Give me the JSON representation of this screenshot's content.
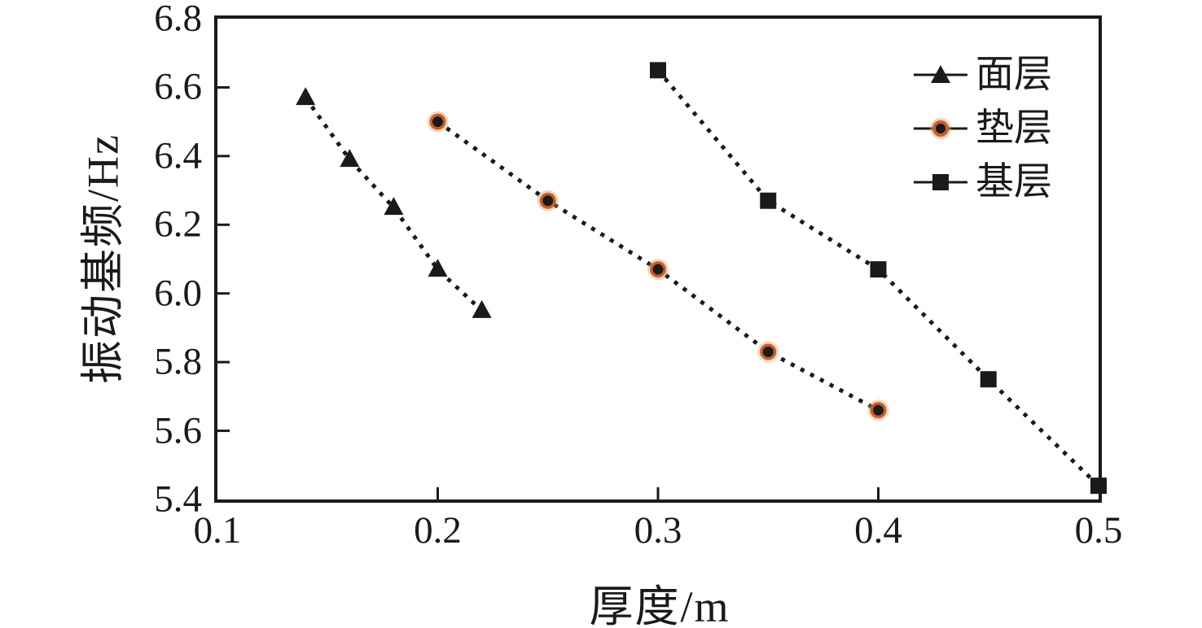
{
  "chart_data": {
    "type": "scatter",
    "title": "",
    "xlabel": "厚度/m",
    "ylabel": "振动基频/Hz",
    "xlim": [
      0.1,
      0.5
    ],
    "ylim": [
      5.4,
      6.8
    ],
    "xticks": [
      "0.1",
      "0.2",
      "0.3",
      "0.4",
      "0.5"
    ],
    "yticks": [
      "5.4",
      "5.6",
      "5.8",
      "6.0",
      "6.2",
      "6.4",
      "6.6",
      "6.8"
    ],
    "grid": false,
    "line_style": "dotted",
    "legend_position": "top-right-inside",
    "series": [
      {
        "name": "面层",
        "marker": "triangle",
        "color": "#1a1a1a",
        "x": [
          0.14,
          0.16,
          0.18,
          0.2,
          0.22
        ],
        "y": [
          6.57,
          6.39,
          6.25,
          6.07,
          5.95
        ]
      },
      {
        "name": "垫层",
        "marker": "circle",
        "color": "#1a1a1a",
        "ring_color": "#c75f2b",
        "x": [
          0.2,
          0.25,
          0.3,
          0.35,
          0.4
        ],
        "y": [
          6.5,
          6.27,
          6.07,
          5.83,
          5.66
        ]
      },
      {
        "name": "基层",
        "marker": "square",
        "color": "#1a1a1a",
        "x": [
          0.3,
          0.35,
          0.4,
          0.45,
          0.5
        ],
        "y": [
          6.65,
          6.27,
          6.07,
          5.75,
          5.44
        ]
      }
    ]
  },
  "legend": {
    "items": [
      {
        "label": "面层"
      },
      {
        "label": "垫层"
      },
      {
        "label": "基层"
      }
    ]
  },
  "colors": {
    "axis": "#1a1a1a",
    "text": "#1a1a1a",
    "background": "#ffffff",
    "circle_ring": "#c75f2b",
    "circle_halo": "#e49a5f"
  }
}
